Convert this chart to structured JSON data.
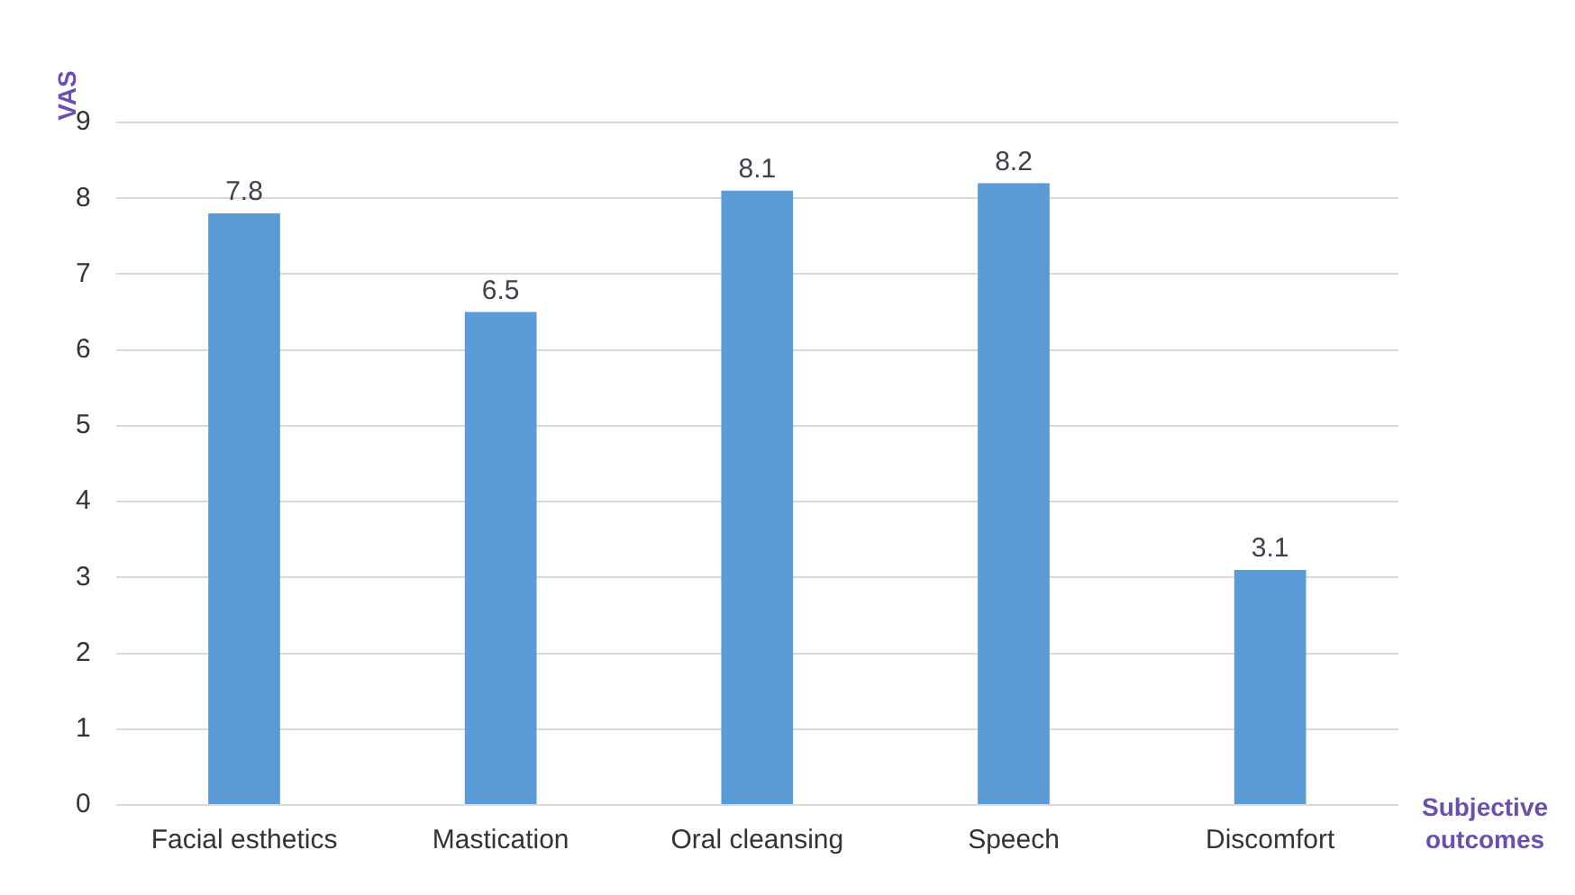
{
  "chart_data": {
    "type": "bar",
    "ylabel": "VAS",
    "xlabel": "Subjective outcomes",
    "categories": [
      "Facial esthetics",
      "Mastication",
      "Oral cleansing",
      "Speech",
      "Discomfort"
    ],
    "values": [
      7.8,
      6.5,
      8.1,
      8.2,
      3.1
    ],
    "color": "#5b9bd5",
    "ylim": [
      0,
      9
    ],
    "yticks": [
      0,
      1,
      2,
      3,
      4,
      5,
      6,
      7,
      8,
      9
    ],
    "grid": "y",
    "data_labels": true,
    "legend": false
  }
}
